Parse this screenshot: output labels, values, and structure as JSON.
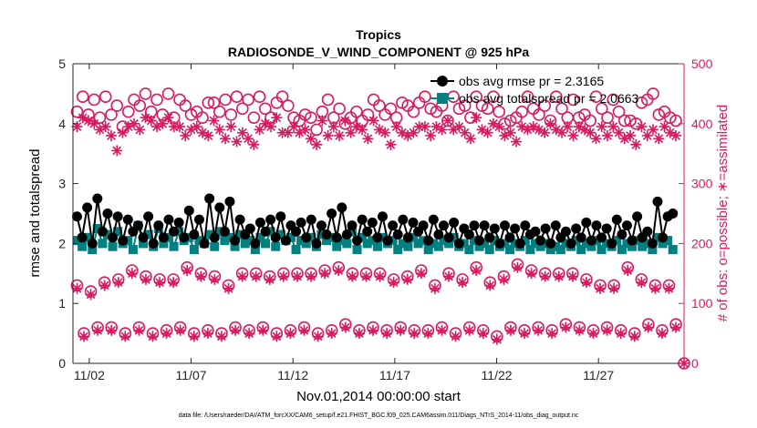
{
  "title_line1": "Tropics",
  "title_line2": "RADIOSONDE_V_WIND_COMPONENT @ 925 hPa",
  "xlabel": "Nov.01,2014 00:00:00 start",
  "ylabel_left": "rmse and totalspread",
  "ylabel_right": "# of obs: o=possible; ∗=assimilated",
  "footer": "data file: /Users/raeder/DAI/ATM_forcXX/CAM6_setup/f.e21.FHIST_BGC.f09_025.CAM6assim.011/Diags_NTrS_2014-11/obs_diag_output.nc",
  "legend": {
    "rmse_label": "obs avg rmse pr = 2.3165",
    "spread_label": "obs avg totalspread pr = 2.0663"
  },
  "colors": {
    "rmse": "#000000",
    "spread": "#008080",
    "count": "#D81B60"
  },
  "chart_data": {
    "type": "line",
    "title": "Tropics / RADIOSONDE_V_WIND_COMPONENT @ 925 hPa",
    "xlabel": "Nov.01,2014 00:00:00 start",
    "x_ticks": [
      {
        "day": 2,
        "label": "11/02"
      },
      {
        "day": 7,
        "label": "11/07"
      },
      {
        "day": 12,
        "label": "11/12"
      },
      {
        "day": 17,
        "label": "11/17"
      },
      {
        "day": 22,
        "label": "11/22"
      },
      {
        "day": 27,
        "label": "11/27"
      }
    ],
    "xlim": [
      1.2,
      31.2
    ],
    "ylim_left": [
      0,
      5
    ],
    "yticks_left": [
      "0",
      "1",
      "2",
      "3",
      "4",
      "5"
    ],
    "ylim_right": [
      0,
      500
    ],
    "yticks_right": [
      "0",
      "100",
      "200",
      "300",
      "400",
      "500"
    ],
    "time_start": 1.4,
    "time_step": 0.25,
    "series": [
      {
        "name": "obs avg rmse pr = 2.3165",
        "axis": "left",
        "marker": "filled-circle",
        "line": true,
        "values": [
          2.45,
          2.1,
          2.6,
          2.0,
          2.75,
          2.2,
          2.5,
          2.1,
          2.45,
          2.05,
          2.4,
          2.2,
          2.3,
          2.1,
          2.45,
          2.0,
          2.3,
          2.1,
          2.4,
          2.2,
          2.35,
          2.1,
          2.55,
          2.15,
          2.4,
          2.0,
          2.75,
          2.1,
          2.6,
          2.2,
          2.7,
          2.05,
          2.4,
          2.15,
          2.25,
          2.0,
          2.35,
          2.2,
          2.4,
          2.1,
          2.45,
          2.05,
          2.3,
          2.2,
          2.35,
          2.1,
          2.4,
          2.0,
          2.3,
          2.15,
          2.5,
          2.1,
          2.6,
          2.15,
          2.3,
          2.05,
          2.4,
          2.2,
          2.35,
          2.1,
          2.45,
          2.05,
          2.3,
          2.15,
          2.4,
          2.1,
          2.35,
          2.2,
          2.3,
          2.05,
          2.4,
          2.15,
          2.3,
          2.1,
          2.35,
          2.0,
          2.25,
          2.15,
          2.3,
          2.05,
          2.3,
          2.1,
          2.25,
          2.0,
          2.3,
          2.1,
          2.25,
          2.0,
          2.3,
          2.15,
          2.2,
          2.05,
          2.25,
          2.0,
          2.3,
          2.1,
          2.2,
          2.0,
          2.25,
          2.1,
          2.35,
          2.05,
          2.3,
          2.1,
          2.25,
          2.0,
          2.4,
          2.15,
          2.3,
          2.05,
          2.45,
          2.1,
          2.2,
          2.0,
          2.7,
          2.1,
          2.45,
          2.5
        ]
      },
      {
        "name": "obs avg totalspread pr = 2.0663",
        "axis": "left",
        "marker": "filled-square",
        "line": true,
        "values": [
          2.05,
          1.95,
          2.1,
          1.9,
          2.25,
          2.0,
          2.15,
          1.95,
          2.2,
          2.0,
          2.05,
          1.9,
          2.3,
          2.0,
          2.15,
          1.95,
          2.25,
          2.0,
          2.1,
          1.95,
          2.2,
          2.05,
          2.1,
          1.9,
          2.05,
          2.0,
          2.15,
          1.95,
          2.2,
          2.05,
          2.1,
          1.95,
          2.15,
          2.0,
          2.05,
          1.9,
          2.1,
          2.0,
          2.2,
          1.95,
          2.15,
          2.05,
          2.1,
          1.9,
          2.05,
          2.0,
          2.1,
          1.95,
          2.15,
          2.05,
          2.1,
          1.95,
          2.05,
          2.0,
          2.2,
          1.9,
          2.1,
          2.0,
          2.05,
          1.95,
          2.1,
          2.0,
          2.05,
          1.9,
          2.0,
          1.95,
          2.1,
          2.0,
          2.05,
          1.9,
          2.0,
          1.95,
          2.05,
          2.0,
          2.1,
          1.95,
          2.0,
          1.9,
          2.05,
          1.95,
          2.0,
          1.9,
          2.05,
          1.95,
          2.0,
          1.9,
          2.0,
          1.95,
          2.05,
          1.9,
          2.0,
          1.95,
          2.0,
          1.9,
          1.95,
          1.9,
          2.0,
          1.95,
          2.05,
          1.9,
          2.0,
          1.95,
          2.05,
          1.9,
          2.0,
          1.95,
          2.05,
          1.9,
          2.0,
          1.95,
          2.05,
          1.95,
          2.0,
          1.9,
          2.1,
          2.0,
          2.05,
          1.9
        ]
      },
      {
        "name": "# obs possible (upper)",
        "axis": "right",
        "marker": "open-circle",
        "values": [
          420,
          445,
          415,
          440,
          410,
          445,
          415,
          430,
          395,
          420,
          440,
          430,
          450,
          420,
          440,
          415,
          450,
          410,
          440,
          430,
          415,
          420,
          410,
          435,
          435,
          420,
          440,
          415,
          445,
          425,
          440,
          410,
          445,
          425,
          410,
          435,
          445,
          430,
          410,
          405,
          415,
          410,
          390,
          420,
          440,
          410,
          425,
          400,
          410,
          420,
          405,
          415,
          440,
          430,
          415,
          425,
          410,
          435,
          430,
          420,
          435,
          445,
          425,
          420,
          430,
          405,
          445,
          425,
          430,
          410,
          445,
          430,
          425,
          445,
          420,
          400,
          405,
          410,
          420,
          445,
          425,
          415,
          430,
          405,
          445,
          425,
          410,
          440,
          410,
          415,
          405,
          445,
          425,
          410,
          440,
          420,
          405,
          405,
          400,
          435,
          440,
          450,
          415,
          420,
          410,
          405
        ]
      },
      {
        "name": "# obs assimilated (upper)",
        "axis": "right",
        "marker": "asterisk",
        "values": [
          395,
          410,
          405,
          400,
          390,
          395,
          380,
          355,
          385,
          395,
          400,
          390,
          410,
          405,
          395,
          400,
          410,
          395,
          395,
          380,
          390,
          395,
          385,
          380,
          405,
          390,
          375,
          395,
          370,
          385,
          375,
          365,
          390,
          400,
          395,
          410,
          385,
          385,
          395,
          385,
          390,
          375,
          365,
          405,
          380,
          395,
          380,
          405,
          385,
          395,
          390,
          375,
          405,
          390,
          385,
          365,
          395,
          385,
          380,
          385,
          395,
          395,
          380,
          395,
          390,
          405,
          390,
          395,
          385,
          375,
          410,
          390,
          385,
          400,
          395,
          380,
          385,
          370,
          395,
          390,
          395,
          390,
          385,
          400,
          390,
          385,
          395,
          380,
          395,
          390,
          385,
          375,
          395,
          380,
          395,
          385,
          375,
          380,
          365,
          395,
          380,
          390,
          375,
          395,
          385,
          380
        ]
      },
      {
        "name": "# obs possible (lower)",
        "axis": "right",
        "marker": "open-circle",
        "values": [
          130,
          50,
          120,
          60,
          135,
          60,
          140,
          50,
          155,
          60,
          145,
          50,
          140,
          55,
          140,
          60,
          160,
          50,
          150,
          55,
          145,
          50,
          130,
          60,
          150,
          55,
          150,
          60,
          145,
          50,
          150,
          55,
          150,
          60,
          150,
          50,
          155,
          55,
          160,
          65,
          150,
          55,
          150,
          60,
          150,
          55,
          140,
          60,
          145,
          55,
          155,
          55,
          130,
          60,
          150,
          50,
          140,
          60,
          160,
          55,
          135,
          45,
          145,
          60,
          165,
          55,
          155,
          60,
          150,
          55,
          150,
          65,
          150,
          60,
          140,
          55,
          130,
          60,
          130,
          55,
          160,
          50,
          140,
          65,
          130,
          55,
          130,
          65
        ]
      },
      {
        "name": "# obs assimilated (lower)",
        "axis": "right",
        "marker": "asterisk",
        "values": [
          125,
          45,
          115,
          55,
          130,
          55,
          135,
          45,
          150,
          55,
          140,
          45,
          135,
          50,
          135,
          55,
          155,
          45,
          145,
          50,
          140,
          45,
          125,
          55,
          145,
          50,
          145,
          55,
          140,
          45,
          145,
          50,
          145,
          55,
          145,
          45,
          150,
          50,
          155,
          60,
          145,
          50,
          145,
          55,
          145,
          50,
          135,
          55,
          140,
          50,
          150,
          50,
          125,
          55,
          145,
          45,
          135,
          55,
          155,
          50,
          130,
          40,
          140,
          55,
          160,
          50,
          150,
          55,
          145,
          50,
          145,
          60,
          145,
          55,
          135,
          50,
          125,
          55,
          125,
          50,
          155,
          45,
          135,
          60,
          125,
          50,
          125,
          60
        ]
      }
    ]
  }
}
